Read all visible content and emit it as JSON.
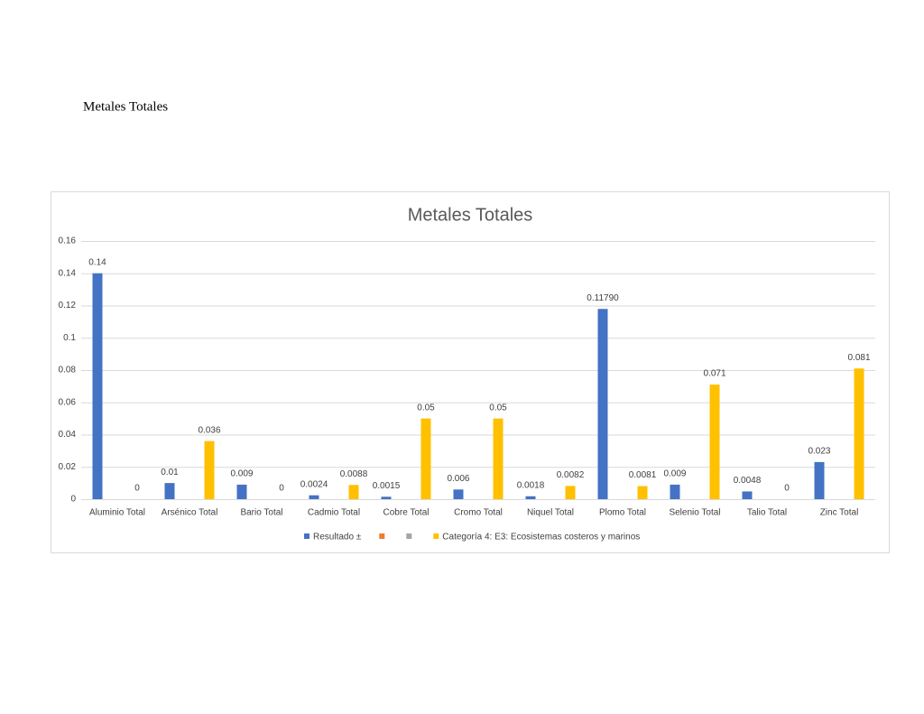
{
  "heading": "Metales Totales",
  "chart_data": {
    "type": "bar",
    "title": "Metales Totales",
    "categories": [
      "Aluminio Total",
      "Arsénico Total",
      "Bario Total",
      "Cadmio Total",
      "Cobre Total",
      "Cromo Total",
      "Niquel Total",
      "Plomo Total",
      "Selenio Total",
      "Talio Total",
      "Zinc  Total"
    ],
    "series": [
      {
        "name": "Resultado ±",
        "color": "#4472c4",
        "values": [
          0.14,
          0.01,
          0.009,
          0.0024,
          0.0015,
          0.006,
          0.0018,
          0.1179,
          0.009,
          0.0048,
          0.023
        ],
        "value_labels": [
          "0.14",
          "0.01",
          "0.009",
          "0.0024",
          "0.0015",
          "0.006",
          "0.0018",
          "0.11790",
          "0.009",
          "0.0048",
          "0.023"
        ]
      },
      {
        "color": "#ed7d31",
        "values": [
          null,
          null,
          null,
          null,
          null,
          null,
          null,
          null,
          null,
          null,
          null
        ]
      },
      {
        "color": "#a5a5a5",
        "values": [
          null,
          null,
          null,
          null,
          null,
          null,
          null,
          null,
          null,
          null,
          null
        ]
      },
      {
        "name": "Categoría 4: E3: Ecosistemas costeros y marinos",
        "color": "#ffc000",
        "values": [
          0,
          0.036,
          0,
          0.0088,
          0.05,
          0.05,
          0.0082,
          0.0081,
          0.071,
          0,
          0.081
        ]
      }
    ],
    "ylim": [
      0,
      0.16
    ],
    "yticks": [
      0,
      0.02,
      0.04,
      0.06,
      0.08,
      0.1,
      0.12,
      0.14,
      0.16
    ],
    "grid": true,
    "legend": "bottom"
  }
}
